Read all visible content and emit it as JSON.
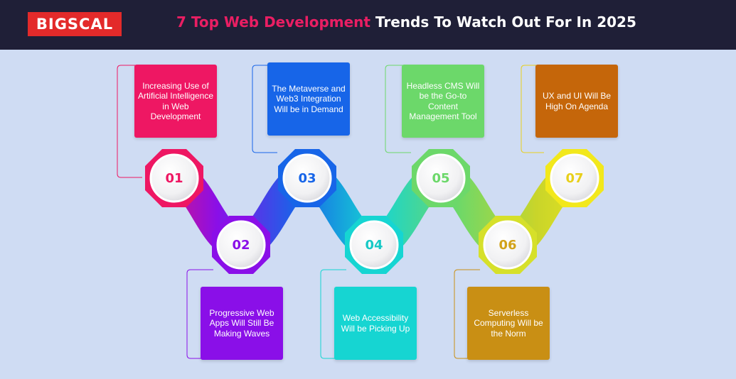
{
  "header": {
    "logo_text": "BIGSCAL",
    "title_highlight": "7 Top Web Development",
    "title_rest": " Trends To Watch Out For In 2025"
  },
  "colors": {
    "background": "#cfdcf3",
    "header_bg": "#1f1f37",
    "logo_bg": "#e32a2a",
    "title_highlight": "#ea1e63"
  },
  "trends": [
    {
      "number": "01",
      "text": "Increasing Use of Artificial Intelligence in Web Development",
      "color": "#ee1763"
    },
    {
      "number": "02",
      "text": "Progressive Web Apps Will Still Be Making Waves",
      "color": "#8a0fe8"
    },
    {
      "number": "03",
      "text": "The Metaverse and Web3 Integration Will be in Demand",
      "color": "#1765e8"
    },
    {
      "number": "04",
      "text": "Web Accessibility Will be Picking Up",
      "color": "#16d5d2"
    },
    {
      "number": "05",
      "text": "Headless CMS Will be the Go-to Content Management Tool",
      "color": "#6cd86a"
    },
    {
      "number": "06",
      "text": "Serverless Computing Will be the Norm",
      "color": "#c98f14"
    },
    {
      "number": "07",
      "text": "UX and UI Will Be High On Agenda",
      "color": "#c5660a"
    }
  ]
}
